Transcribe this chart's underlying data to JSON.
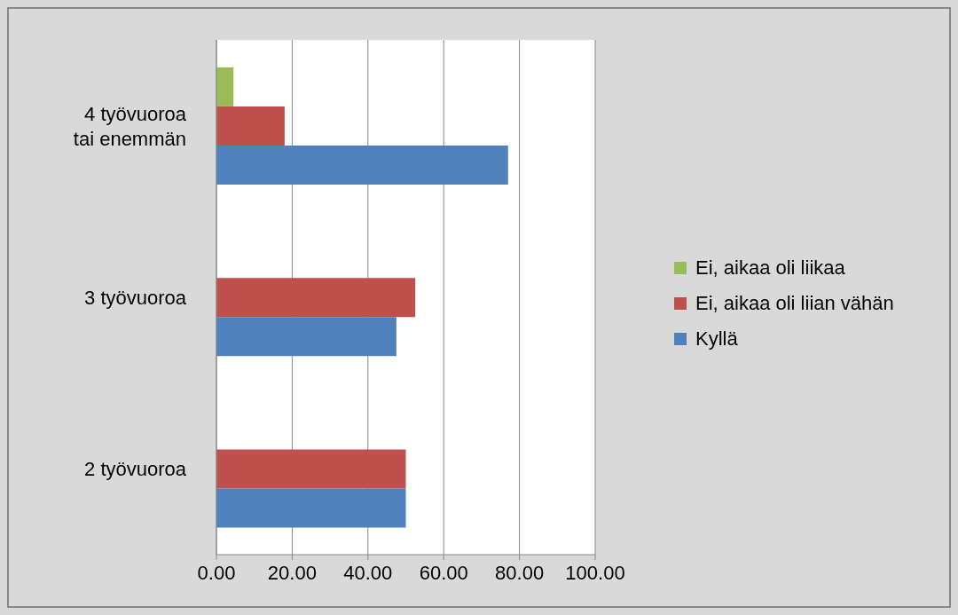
{
  "chart_data": {
    "type": "bar",
    "orientation": "horizontal",
    "categories": [
      "4 työvuoroa tai enemmän",
      "3 työvuoroa",
      "2 työvuoroa"
    ],
    "series": [
      {
        "name": "Ei, aikaa oli liikaa",
        "color": "#9bbb59",
        "values": [
          4.5,
          null,
          null
        ]
      },
      {
        "name": "Ei, aikaa oli liian vähän",
        "color": "#c0504d",
        "values": [
          18,
          52.5,
          50
        ]
      },
      {
        "name": "Kyllä",
        "color": "#4f81bd",
        "values": [
          77,
          47.5,
          50
        ]
      }
    ],
    "xlim": [
      0,
      100
    ],
    "xticks": [
      {
        "value": 0,
        "label": "0.00"
      },
      {
        "value": 20,
        "label": "20.00"
      },
      {
        "value": 40,
        "label": "40.00"
      },
      {
        "value": 60,
        "label": "60.00"
      },
      {
        "value": 80,
        "label": "80.00"
      },
      {
        "value": 100,
        "label": "100.00"
      }
    ],
    "grid": "x",
    "legend": "right"
  }
}
